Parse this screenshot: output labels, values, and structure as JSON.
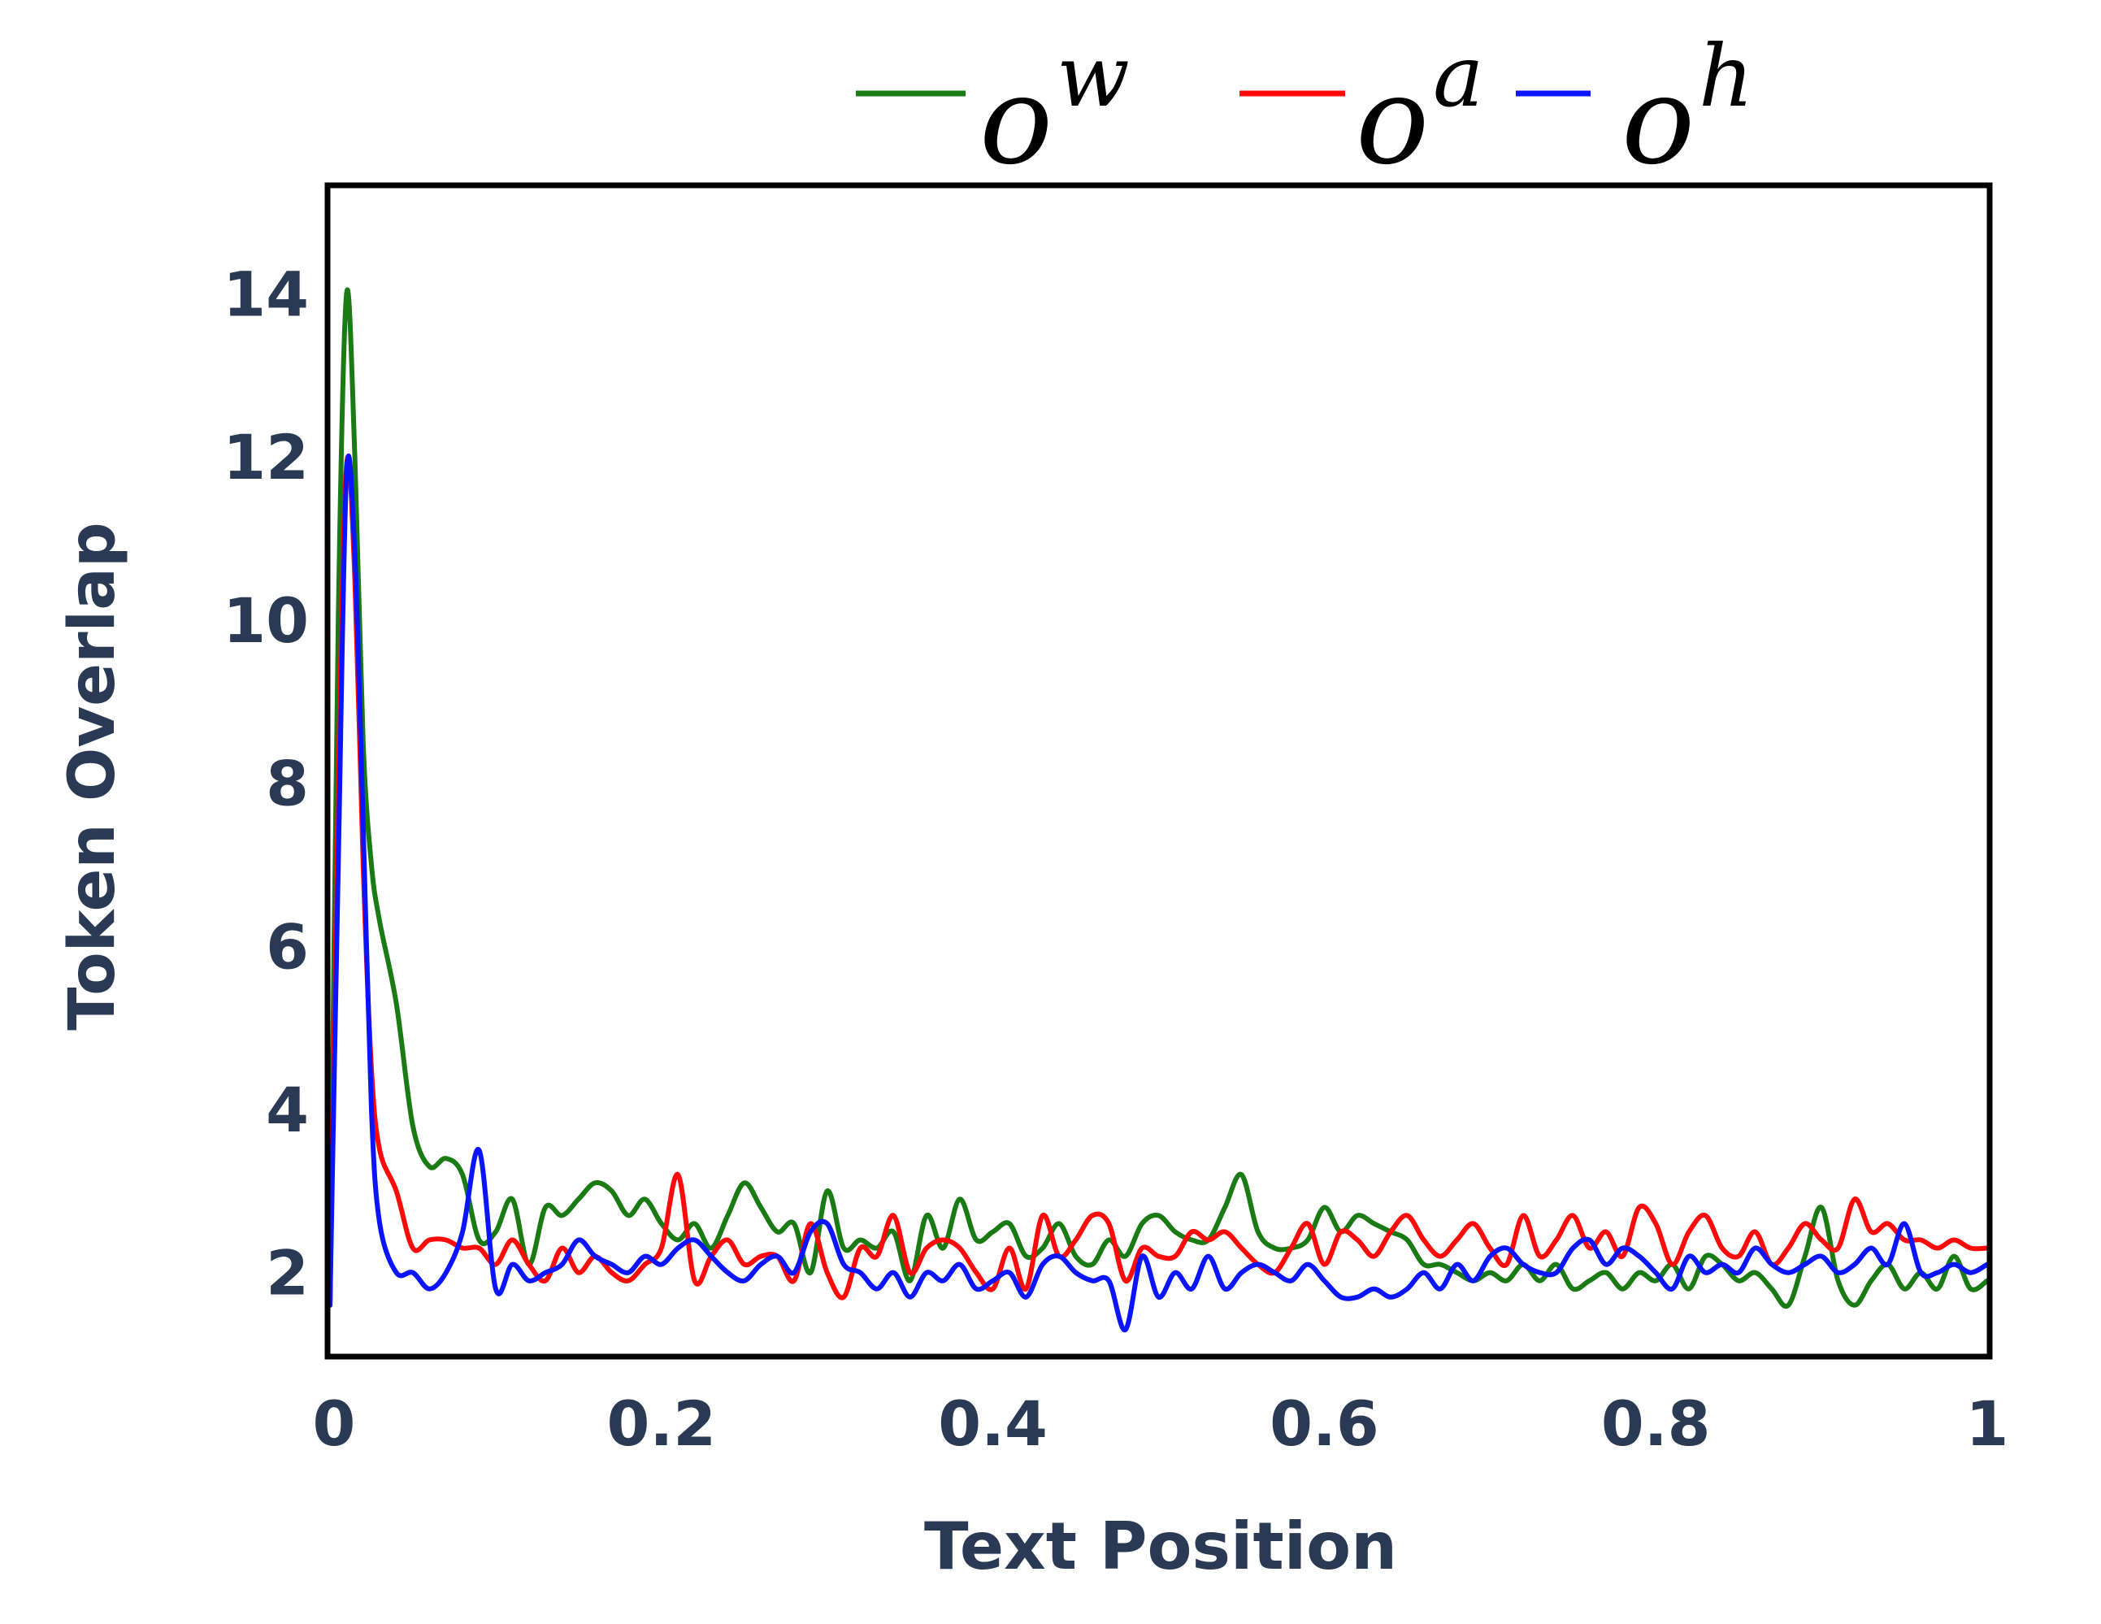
{
  "chart_data": {
    "type": "line",
    "xlabel": "Text Position",
    "ylabel": "Token Overlap",
    "xlim": [
      0,
      1
    ],
    "ylim": [
      1,
      15.3
    ],
    "x_ticks": [
      "0",
      "0.2",
      "0.4",
      "0.6",
      "0.8",
      "1"
    ],
    "x_tick_values": [
      0,
      0.2,
      0.4,
      0.6,
      0.8,
      1
    ],
    "y_ticks": [
      "2",
      "4",
      "6",
      "8",
      "10",
      "12",
      "14"
    ],
    "y_tick_values": [
      2,
      4,
      6,
      8,
      10,
      12,
      14
    ],
    "grid": false,
    "legend_position": "top",
    "series": [
      {
        "name": "o^w",
        "legend_base": "o",
        "legend_sup": "w",
        "color": "#1a7a14",
        "x": [
          0,
          0.005,
          0.01,
          0.015,
          0.02,
          0.025,
          0.03,
          0.04,
          0.05,
          0.06,
          0.07,
          0.08,
          0.09,
          0.1,
          0.11,
          0.12,
          0.13,
          0.14,
          0.15,
          0.16,
          0.17,
          0.18,
          0.19,
          0.2,
          0.21,
          0.22,
          0.23,
          0.24,
          0.25,
          0.26,
          0.27,
          0.28,
          0.29,
          0.3,
          0.31,
          0.32,
          0.33,
          0.34,
          0.35,
          0.36,
          0.37,
          0.38,
          0.39,
          0.4,
          0.41,
          0.42,
          0.43,
          0.44,
          0.45,
          0.46,
          0.47,
          0.48,
          0.49,
          0.5,
          0.51,
          0.52,
          0.53,
          0.54,
          0.55,
          0.56,
          0.57,
          0.58,
          0.59,
          0.6,
          0.61,
          0.62,
          0.63,
          0.64,
          0.65,
          0.66,
          0.67,
          0.68,
          0.69,
          0.7,
          0.71,
          0.72,
          0.73,
          0.74,
          0.75,
          0.76,
          0.77,
          0.78,
          0.79,
          0.8,
          0.81,
          0.82,
          0.83,
          0.84,
          0.85,
          0.86,
          0.87,
          0.88,
          0.89,
          0.9,
          0.91,
          0.92,
          0.93,
          0.94,
          0.95,
          0.96,
          0.97,
          0.98,
          0.99,
          1.0
        ],
        "y": [
          1.6,
          10.0,
          14.0,
          12.0,
          8.5,
          7.0,
          6.3,
          5.3,
          3.8,
          3.3,
          3.4,
          3.2,
          2.4,
          2.5,
          2.9,
          2.1,
          2.8,
          2.7,
          2.9,
          3.1,
          3.0,
          2.7,
          2.9,
          2.6,
          2.4,
          2.6,
          2.3,
          2.7,
          3.1,
          2.8,
          2.5,
          2.6,
          2.0,
          3.0,
          2.3,
          2.4,
          2.3,
          2.5,
          1.9,
          2.7,
          2.3,
          2.9,
          2.4,
          2.5,
          2.6,
          2.2,
          2.3,
          2.6,
          2.2,
          2.1,
          2.4,
          2.2,
          2.6,
          2.7,
          2.5,
          2.4,
          2.4,
          2.8,
          3.2,
          2.5,
          2.3,
          2.3,
          2.4,
          2.8,
          2.5,
          2.7,
          2.6,
          2.5,
          2.4,
          2.1,
          2.1,
          2.0,
          1.9,
          2.0,
          1.9,
          2.1,
          1.9,
          2.1,
          1.8,
          1.9,
          2.0,
          1.8,
          2.0,
          1.9,
          2.1,
          1.8,
          2.2,
          2.1,
          1.9,
          2.0,
          1.8,
          1.6,
          2.2,
          2.8,
          1.9,
          1.6,
          1.9,
          2.1,
          1.8,
          2.0,
          1.8,
          2.2,
          1.8,
          1.9
        ]
      },
      {
        "name": "o^a",
        "legend_base": "o",
        "legend_sup": "a",
        "color": "#ff0a0a",
        "x": [
          0,
          0.005,
          0.01,
          0.015,
          0.02,
          0.025,
          0.03,
          0.04,
          0.05,
          0.06,
          0.07,
          0.08,
          0.09,
          0.1,
          0.11,
          0.12,
          0.13,
          0.14,
          0.15,
          0.16,
          0.17,
          0.18,
          0.19,
          0.2,
          0.21,
          0.22,
          0.23,
          0.24,
          0.25,
          0.26,
          0.27,
          0.28,
          0.29,
          0.3,
          0.31,
          0.32,
          0.33,
          0.34,
          0.35,
          0.36,
          0.37,
          0.38,
          0.39,
          0.4,
          0.41,
          0.42,
          0.43,
          0.44,
          0.45,
          0.46,
          0.47,
          0.48,
          0.49,
          0.5,
          0.51,
          0.52,
          0.53,
          0.54,
          0.55,
          0.56,
          0.57,
          0.58,
          0.59,
          0.6,
          0.61,
          0.62,
          0.63,
          0.64,
          0.65,
          0.66,
          0.67,
          0.68,
          0.69,
          0.7,
          0.71,
          0.72,
          0.73,
          0.74,
          0.75,
          0.76,
          0.77,
          0.78,
          0.79,
          0.8,
          0.81,
          0.82,
          0.83,
          0.84,
          0.85,
          0.86,
          0.87,
          0.88,
          0.89,
          0.9,
          0.91,
          0.92,
          0.93,
          0.94,
          0.95,
          0.96,
          0.97,
          0.98,
          0.99,
          1.0
        ],
        "y": [
          1.6,
          8.0,
          11.9,
          10.5,
          7.0,
          4.5,
          3.5,
          3.0,
          2.3,
          2.4,
          2.4,
          2.3,
          2.3,
          2.1,
          2.4,
          2.1,
          1.9,
          2.3,
          2.0,
          2.2,
          2.0,
          1.9,
          2.1,
          2.3,
          3.2,
          1.9,
          2.2,
          2.4,
          2.1,
          2.2,
          2.2,
          1.9,
          2.6,
          2.0,
          1.7,
          2.3,
          2.2,
          2.7,
          2.0,
          2.3,
          2.4,
          2.3,
          2.0,
          1.8,
          2.3,
          1.8,
          2.7,
          2.2,
          2.4,
          2.7,
          2.6,
          1.9,
          2.3,
          2.2,
          2.2,
          2.5,
          2.4,
          2.5,
          2.3,
          2.1,
          2.0,
          2.3,
          2.6,
          2.1,
          2.5,
          2.4,
          2.2,
          2.5,
          2.7,
          2.4,
          2.2,
          2.4,
          2.6,
          2.3,
          2.1,
          2.7,
          2.2,
          2.4,
          2.7,
          2.3,
          2.5,
          2.2,
          2.8,
          2.6,
          2.1,
          2.5,
          2.7,
          2.3,
          2.2,
          2.5,
          2.1,
          2.3,
          2.6,
          2.4,
          2.3,
          2.9,
          2.5,
          2.6,
          2.4,
          2.4,
          2.3,
          2.4,
          2.3,
          2.3
        ]
      },
      {
        "name": "o^h",
        "legend_base": "o",
        "legend_sup": "h",
        "color": "#0a14ff",
        "x": [
          0,
          0.005,
          0.01,
          0.015,
          0.02,
          0.025,
          0.03,
          0.04,
          0.05,
          0.06,
          0.07,
          0.08,
          0.09,
          0.1,
          0.11,
          0.12,
          0.13,
          0.14,
          0.15,
          0.16,
          0.17,
          0.18,
          0.19,
          0.2,
          0.21,
          0.22,
          0.23,
          0.24,
          0.25,
          0.26,
          0.27,
          0.28,
          0.29,
          0.3,
          0.31,
          0.32,
          0.33,
          0.34,
          0.35,
          0.36,
          0.37,
          0.38,
          0.39,
          0.4,
          0.41,
          0.42,
          0.43,
          0.44,
          0.45,
          0.46,
          0.47,
          0.48,
          0.49,
          0.5,
          0.51,
          0.52,
          0.53,
          0.54,
          0.55,
          0.56,
          0.57,
          0.58,
          0.59,
          0.6,
          0.61,
          0.62,
          0.63,
          0.64,
          0.65,
          0.66,
          0.67,
          0.68,
          0.69,
          0.7,
          0.71,
          0.72,
          0.73,
          0.74,
          0.75,
          0.76,
          0.77,
          0.78,
          0.79,
          0.8,
          0.81,
          0.82,
          0.83,
          0.84,
          0.85,
          0.86,
          0.87,
          0.88,
          0.89,
          0.9,
          0.91,
          0.92,
          0.93,
          0.94,
          0.95,
          0.96,
          0.97,
          0.98,
          0.99,
          1.0
        ],
        "y": [
          1.6,
          7.0,
          11.8,
          10.8,
          7.5,
          4.0,
          2.6,
          2.0,
          2.0,
          1.8,
          2.0,
          2.5,
          3.5,
          1.8,
          2.1,
          1.9,
          2.0,
          2.1,
          2.4,
          2.2,
          2.1,
          2.0,
          2.2,
          2.1,
          2.3,
          2.4,
          2.2,
          2.0,
          1.9,
          2.1,
          2.2,
          2.0,
          2.5,
          2.6,
          2.1,
          2.0,
          1.8,
          2.0,
          1.7,
          2.0,
          1.9,
          2.1,
          1.8,
          1.9,
          2.0,
          1.7,
          2.1,
          2.2,
          2.0,
          1.9,
          1.9,
          1.3,
          2.2,
          1.7,
          2.0,
          1.8,
          2.2,
          1.8,
          2.0,
          2.1,
          2.0,
          1.9,
          2.1,
          1.9,
          1.7,
          1.7,
          1.8,
          1.7,
          1.8,
          2.0,
          1.8,
          2.1,
          1.9,
          2.2,
          2.3,
          2.1,
          2.0,
          2.0,
          2.3,
          2.4,
          2.1,
          2.3,
          2.2,
          2.0,
          1.8,
          2.2,
          2.0,
          2.1,
          2.0,
          2.3,
          2.1,
          2.0,
          2.1,
          2.2,
          2.0,
          2.1,
          2.3,
          2.1,
          2.6,
          2.0,
          2.0,
          2.1,
          2.0,
          2.1
        ]
      }
    ]
  }
}
